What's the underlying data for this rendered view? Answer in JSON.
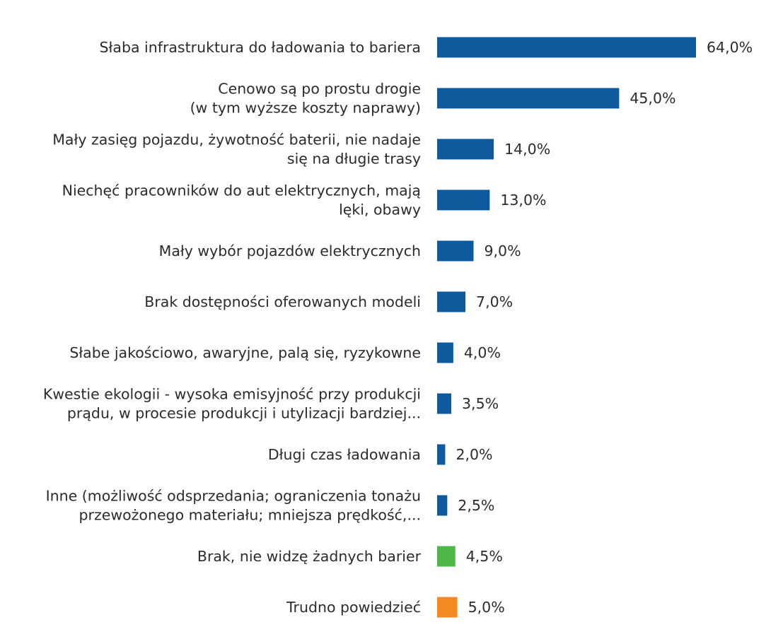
{
  "chart_data": {
    "type": "bar",
    "orientation": "horizontal",
    "title": "",
    "xlabel": "",
    "ylabel": "",
    "grid": false,
    "legend": "none",
    "xlim": [
      0,
      64
    ],
    "colors": {
      "default": "#0e5a9c",
      "green": "#4fb649",
      "orange": "#f28a24",
      "text": "#2b2b2b"
    },
    "categories": [
      [
        "Słaba infrastruktura do ładowania to bariera"
      ],
      [
        "Cenowo są po prostu drogie",
        "(w tym wyższe koszty naprawy)"
      ],
      [
        "Mały zasięg pojazdu, żywotność baterii, nie nadaje",
        "się na długie trasy"
      ],
      [
        "Niechęć pracowników do aut elektrycznych, mają",
        "lęki, obawy"
      ],
      [
        "Mały wybór pojazdów elektrycznych"
      ],
      [
        "Brak dostępności oferowanych modeli"
      ],
      [
        "Słabe jakościowo, awaryjne, palą się, ryzykowne"
      ],
      [
        "Kwestie ekologii - wysoka emisyjność przy produkcji",
        "prądu, w procesie produkcji i utylizacji bardziej..."
      ],
      [
        "Długi czas ładowania"
      ],
      [
        "Inne (możliwość odsprzedania; ograniczenia tonażu",
        "przewożonego materiału; mniejsza prędkość,..."
      ],
      [
        "Brak, nie widzę żadnych barier"
      ],
      [
        "Trudno powiedzieć"
      ]
    ],
    "values": [
      64.0,
      45.0,
      14.0,
      13.0,
      9.0,
      7.0,
      4.0,
      3.5,
      2.0,
      2.5,
      4.5,
      5.0
    ],
    "value_labels": [
      "64,0%",
      "45,0%",
      "14,0%",
      "13,0%",
      "9,0%",
      "7,0%",
      "4,0%",
      "3,5%",
      "2,0%",
      "2,5%",
      "4,5%",
      "5,0%"
    ],
    "bar_colors": [
      "default",
      "default",
      "default",
      "default",
      "default",
      "default",
      "default",
      "default",
      "default",
      "default",
      "green",
      "orange"
    ]
  }
}
